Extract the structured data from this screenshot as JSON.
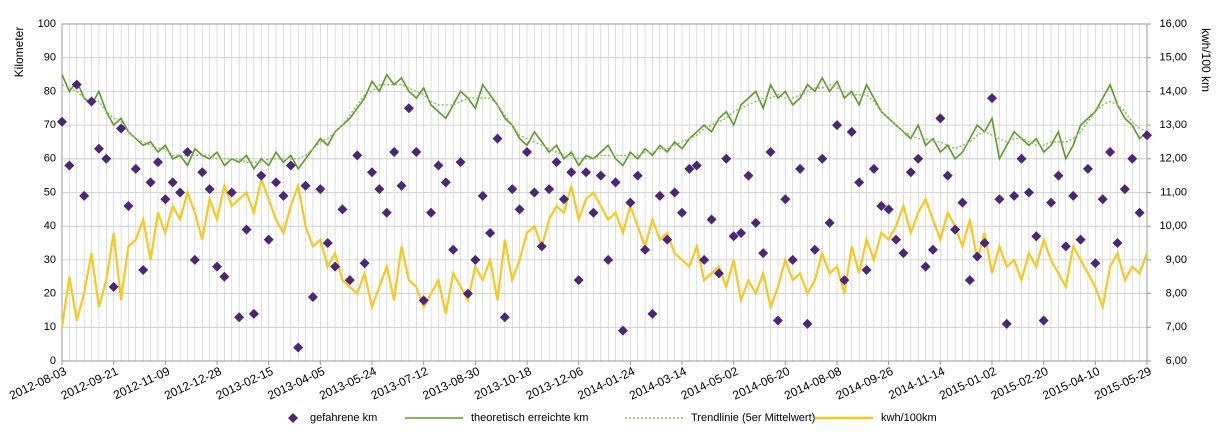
{
  "chart_data": {
    "type": "combo",
    "x": [
      "2012-08-03",
      "2012-08-10",
      "2012-08-17",
      "2012-08-24",
      "2012-08-31",
      "2012-09-07",
      "2012-09-14",
      "2012-09-21",
      "2012-09-28",
      "2012-10-05",
      "2012-10-12",
      "2012-10-19",
      "2012-10-26",
      "2012-11-02",
      "2012-11-09",
      "2012-11-16",
      "2012-11-23",
      "2012-11-30",
      "2012-12-07",
      "2012-12-14",
      "2012-12-21",
      "2012-12-28",
      "2013-01-04",
      "2013-01-11",
      "2013-01-18",
      "2013-01-25",
      "2013-02-01",
      "2013-02-08",
      "2013-02-15",
      "2013-02-22",
      "2013-03-01",
      "2013-03-08",
      "2013-03-15",
      "2013-03-22",
      "2013-03-29",
      "2013-04-05",
      "2013-04-12",
      "2013-04-19",
      "2013-04-26",
      "2013-05-03",
      "2013-05-10",
      "2013-05-17",
      "2013-05-24",
      "2013-05-31",
      "2013-06-07",
      "2013-06-14",
      "2013-06-21",
      "2013-06-28",
      "2013-07-05",
      "2013-07-12",
      "2013-07-19",
      "2013-07-26",
      "2013-08-02",
      "2013-08-09",
      "2013-08-16",
      "2013-08-23",
      "2013-08-30",
      "2013-09-06",
      "2013-09-13",
      "2013-09-20",
      "2013-09-27",
      "2013-10-04",
      "2013-10-11",
      "2013-10-18",
      "2013-10-25",
      "2013-11-01",
      "2013-11-08",
      "2013-11-15",
      "2013-11-22",
      "2013-11-29",
      "2013-12-06",
      "2013-12-13",
      "2013-12-20",
      "2013-12-27",
      "2014-01-03",
      "2014-01-10",
      "2014-01-17",
      "2014-01-24",
      "2014-01-31",
      "2014-02-07",
      "2014-02-14",
      "2014-02-21",
      "2014-02-28",
      "2014-03-07",
      "2014-03-14",
      "2014-03-21",
      "2014-03-28",
      "2014-04-04",
      "2014-04-11",
      "2014-04-18",
      "2014-04-25",
      "2014-05-02",
      "2014-05-09",
      "2014-05-16",
      "2014-05-23",
      "2014-05-30",
      "2014-06-06",
      "2014-06-13",
      "2014-06-20",
      "2014-06-27",
      "2014-07-04",
      "2014-07-11",
      "2014-07-18",
      "2014-07-25",
      "2014-08-01",
      "2014-08-08",
      "2014-08-15",
      "2014-08-22",
      "2014-08-29",
      "2014-09-05",
      "2014-09-12",
      "2014-09-19",
      "2014-09-26",
      "2014-10-03",
      "2014-10-10",
      "2014-10-17",
      "2014-10-24",
      "2014-10-31",
      "2014-11-07",
      "2014-11-14",
      "2014-11-21",
      "2014-11-28",
      "2014-12-05",
      "2014-12-12",
      "2014-12-19",
      "2014-12-26",
      "2015-01-02",
      "2015-01-09",
      "2015-01-16",
      "2015-01-23",
      "2015-01-30",
      "2015-02-06",
      "2015-02-13",
      "2015-02-20",
      "2015-02-27",
      "2015-03-06",
      "2015-03-13",
      "2015-03-20",
      "2015-03-27",
      "2015-04-03",
      "2015-04-10",
      "2015-04-17",
      "2015-04-24",
      "2015-05-01",
      "2015-05-08",
      "2015-05-15",
      "2015-05-22",
      "2015-05-29"
    ],
    "xlim": [
      "2012-08-03",
      "2015-05-29"
    ],
    "xticks": [
      "2012-08-03",
      "2012-09-21",
      "2012-11-09",
      "2012-12-28",
      "2013-02-15",
      "2013-04-05",
      "2013-05-24",
      "2013-07-12",
      "2013-08-30",
      "2013-10-18",
      "2013-12-06",
      "2014-01-24",
      "2014-03-14",
      "2014-05-02",
      "2014-06-20",
      "2014-08-08",
      "2014-09-26",
      "2014-11-14",
      "2015-01-02",
      "2015-02-20",
      "2015-04-10",
      "2015-05-29"
    ],
    "ylabel": "Kilometer",
    "ylim": [
      0,
      100
    ],
    "yticks": [
      0,
      10,
      20,
      30,
      40,
      50,
      60,
      70,
      80,
      90,
      100
    ],
    "y2label": "kwh/100 km",
    "y2lim": [
      6,
      16
    ],
    "y2ticks": [
      {
        "value": 6,
        "label": "6,00"
      },
      {
        "value": 7,
        "label": "7,00"
      },
      {
        "value": 8,
        "label": "8,00"
      },
      {
        "value": 9,
        "label": "9,00"
      },
      {
        "value": 10,
        "label": "10,00"
      },
      {
        "value": 11,
        "label": "11,00"
      },
      {
        "value": 12,
        "label": "12,00"
      },
      {
        "value": 13,
        "label": "13,00"
      },
      {
        "value": 14,
        "label": "14,00"
      },
      {
        "value": 15,
        "label": "15,00"
      },
      {
        "value": 16,
        "label": "16,00"
      }
    ],
    "grid": true,
    "legend": "bottom",
    "series": [
      {
        "name": "gefahrene km",
        "type": "scatter",
        "color": "#4b2675",
        "values": [
          71,
          58,
          82,
          49,
          77,
          63,
          60,
          22,
          69,
          46,
          57,
          27,
          53,
          59,
          48,
          53,
          50,
          62,
          30,
          56,
          51,
          28,
          25,
          50,
          13,
          39,
          14,
          55,
          36,
          53,
          49,
          58,
          4,
          52,
          19,
          51,
          35,
          28,
          45,
          24,
          61,
          29,
          56,
          51,
          44,
          62,
          52,
          75,
          62,
          18,
          44,
          58,
          53,
          33,
          59,
          20,
          30,
          49,
          38,
          66,
          13,
          51,
          45,
          62,
          50,
          34,
          51,
          59,
          48,
          56,
          24,
          56,
          44,
          55,
          30,
          53,
          9,
          47,
          55,
          33,
          14,
          49,
          36,
          50,
          44,
          57,
          58,
          30,
          42,
          26,
          60,
          37,
          38,
          55,
          41,
          32,
          62,
          12,
          48,
          30,
          57,
          11,
          33,
          60,
          41,
          70,
          24,
          68,
          53,
          27,
          57,
          46,
          45,
          36,
          32,
          56,
          60,
          28,
          33,
          72,
          55,
          39,
          47,
          24,
          31,
          35,
          78,
          48,
          11,
          49,
          60,
          50,
          37,
          12,
          47,
          55,
          34,
          49,
          36,
          57,
          29,
          48,
          62,
          35,
          51,
          60,
          44,
          67
        ]
      },
      {
        "name": "theoretisch erreichte km",
        "type": "line",
        "color": "#5b9b2a",
        "values": [
          85,
          80,
          83,
          78,
          76,
          80,
          74,
          70,
          72,
          68,
          66,
          64,
          65,
          62,
          64,
          60,
          61,
          58,
          63,
          61,
          60,
          62,
          58,
          60,
          59,
          61,
          57,
          60,
          58,
          62,
          59,
          61,
          57,
          60,
          63,
          66,
          64,
          68,
          70,
          72,
          75,
          78,
          83,
          80,
          85,
          82,
          84,
          80,
          78,
          81,
          76,
          74,
          72,
          76,
          80,
          78,
          75,
          82,
          79,
          76,
          72,
          70,
          66,
          64,
          68,
          65,
          62,
          64,
          60,
          62,
          58,
          61,
          60,
          62,
          64,
          60,
          58,
          62,
          60,
          63,
          61,
          64,
          62,
          65,
          63,
          66,
          68,
          70,
          68,
          72,
          74,
          70,
          76,
          78,
          80,
          75,
          82,
          78,
          80,
          76,
          78,
          82,
          80,
          84,
          80,
          83,
          78,
          80,
          76,
          82,
          78,
          74,
          72,
          70,
          68,
          66,
          70,
          64,
          66,
          62,
          64,
          60,
          62,
          66,
          70,
          68,
          72,
          60,
          64,
          68,
          66,
          64,
          66,
          62,
          64,
          68,
          60,
          64,
          70,
          72,
          74,
          78,
          82,
          76,
          72,
          70,
          66,
          68
        ]
      },
      {
        "name": "Trendlinie (5er Mittelwert)",
        "type": "dotted",
        "color": "#8cbf5a",
        "values": [
          82,
          81,
          80,
          78,
          77,
          77,
          74,
          72,
          71,
          68,
          66,
          65,
          64,
          63,
          63,
          61,
          61,
          61,
          61,
          61,
          61,
          60,
          60,
          60,
          60,
          59,
          59,
          59,
          60,
          60,
          60,
          60,
          60,
          61,
          63,
          65,
          66,
          68,
          70,
          73,
          76,
          79,
          80,
          82,
          82,
          82,
          82,
          81,
          80,
          79,
          77,
          76,
          76,
          76,
          77,
          78,
          78,
          78,
          78,
          76,
          73,
          70,
          67,
          66,
          65,
          64,
          63,
          62,
          61,
          61,
          60,
          60,
          60,
          61,
          61,
          61,
          61,
          61,
          61,
          62,
          62,
          63,
          63,
          64,
          65,
          66,
          67,
          69,
          70,
          71,
          72,
          74,
          75,
          76,
          77,
          78,
          78,
          79,
          78,
          78,
          79,
          80,
          81,
          81,
          82,
          81,
          80,
          79,
          79,
          79,
          77,
          74,
          72,
          70,
          68,
          67,
          66,
          66,
          65,
          65,
          64,
          63,
          64,
          65,
          67,
          68,
          67,
          66,
          65,
          66,
          66,
          65,
          64,
          64,
          65,
          65,
          65,
          66,
          68,
          71,
          74,
          76,
          77,
          76,
          74,
          71,
          69,
          68
        ]
      },
      {
        "name": "kwh/100km",
        "type": "line",
        "axis": "y2",
        "color": "#f7c81e",
        "values": [
          7.0,
          8.5,
          7.2,
          8.0,
          9.2,
          7.6,
          8.4,
          9.8,
          7.8,
          9.4,
          9.6,
          10.2,
          9.0,
          10.4,
          9.8,
          10.6,
          10.2,
          11.0,
          10.4,
          9.6,
          10.8,
          10.2,
          11.2,
          10.6,
          10.8,
          11.0,
          10.4,
          11.4,
          10.8,
          10.2,
          9.8,
          10.6,
          11.2,
          10.0,
          9.4,
          9.6,
          8.8,
          9.2,
          8.4,
          8.2,
          8.0,
          8.6,
          7.6,
          8.2,
          8.8,
          7.8,
          9.4,
          8.4,
          8.2,
          7.6,
          8.0,
          8.4,
          7.4,
          8.6,
          8.2,
          7.8,
          8.8,
          8.4,
          9.0,
          7.8,
          9.6,
          8.4,
          9.0,
          9.8,
          10.0,
          9.4,
          10.2,
          10.6,
          10.4,
          11.2,
          10.2,
          10.8,
          11.0,
          10.6,
          10.2,
          10.4,
          9.8,
          10.6,
          10.0,
          9.4,
          10.2,
          9.6,
          9.8,
          9.2,
          9.0,
          8.8,
          9.4,
          8.4,
          8.6,
          8.8,
          8.2,
          9.0,
          7.8,
          8.4,
          8.0,
          8.6,
          7.6,
          8.2,
          9.0,
          8.4,
          8.6,
          8.0,
          8.4,
          9.2,
          8.6,
          8.8,
          8.0,
          9.4,
          8.6,
          9.6,
          9.0,
          9.8,
          9.6,
          10.0,
          10.6,
          9.8,
          10.4,
          10.8,
          10.2,
          9.6,
          10.4,
          10.0,
          9.4,
          10.2,
          9.0,
          9.8,
          8.6,
          9.4,
          8.8,
          9.0,
          8.4,
          9.2,
          8.8,
          9.6,
          9.0,
          8.6,
          8.2,
          9.4,
          9.0,
          8.6,
          8.2,
          7.6,
          8.8,
          9.2,
          8.4,
          8.8,
          8.6,
          9.2
        ]
      }
    ]
  }
}
